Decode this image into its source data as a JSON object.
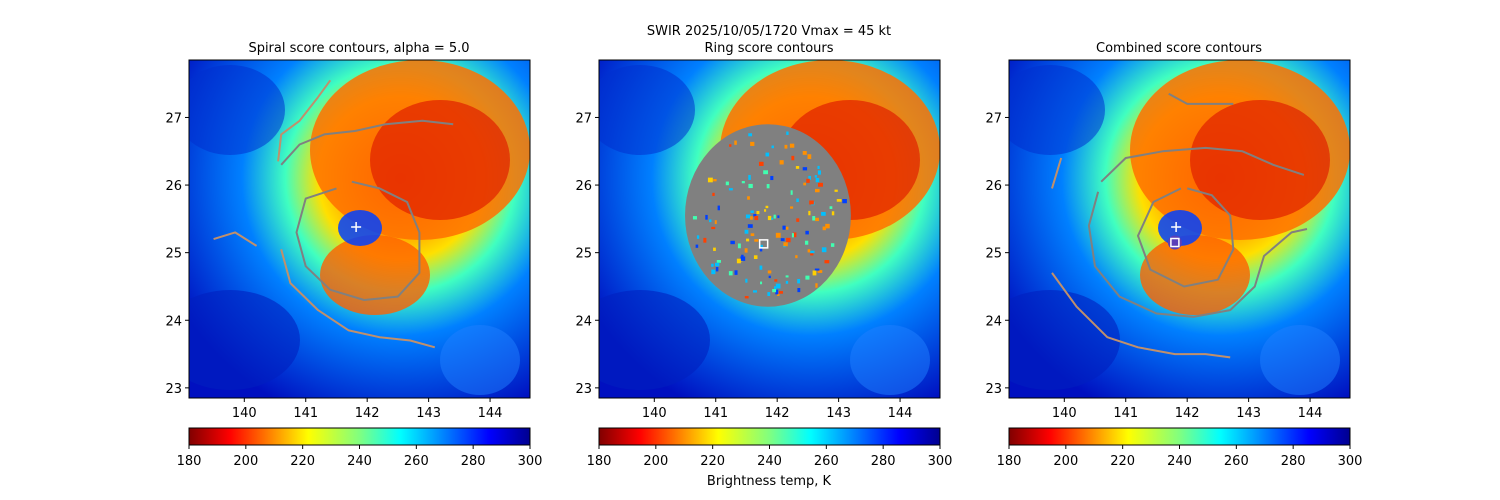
{
  "figure": {
    "suptitle_line1": "SWIR  2025/10/05/1720    Vmax = 45 kt",
    "colorbar_label": "Brightness temp, K"
  },
  "chart_data": [
    {
      "type": "heatmap",
      "title": "Spiral score contours, alpha =  5.0",
      "xlim": [
        139.1,
        144.65
      ],
      "ylim": [
        22.85,
        27.85
      ],
      "x_ticks": [
        140,
        141,
        142,
        143,
        144
      ],
      "y_ticks": [
        23,
        24,
        25,
        26,
        27
      ],
      "grid": false,
      "colormap": "jet",
      "colorbar": {
        "range": [
          180,
          300
        ],
        "ticks": [
          180,
          200,
          220,
          240,
          260,
          280,
          300
        ],
        "reversed": true
      },
      "center_marker": {
        "x": 141.82,
        "y": 25.38,
        "symbol": "+",
        "color": "#ffffff"
      },
      "contours": [
        {
          "color": "#808080",
          "points": [
            [
              140.6,
              26.3
            ],
            [
              140.9,
              26.6
            ],
            [
              141.3,
              26.75
            ],
            [
              141.8,
              26.8
            ],
            [
              142.3,
              26.9
            ],
            [
              142.9,
              26.95
            ],
            [
              143.4,
              26.9
            ]
          ]
        },
        {
          "color": "#808080",
          "points": [
            [
              141.5,
              25.95
            ],
            [
              141.0,
              25.8
            ],
            [
              140.85,
              25.3
            ],
            [
              141.0,
              24.8
            ],
            [
              141.4,
              24.45
            ],
            [
              141.95,
              24.3
            ],
            [
              142.5,
              24.35
            ],
            [
              142.85,
              24.7
            ],
            [
              142.85,
              25.3
            ],
            [
              142.65,
              25.75
            ],
            [
              142.2,
              25.95
            ],
            [
              141.75,
              26.05
            ]
          ]
        },
        {
          "color": "#c0906c",
          "points": [
            [
              140.6,
              25.05
            ],
            [
              140.75,
              24.55
            ],
            [
              141.2,
              24.15
            ],
            [
              141.7,
              23.85
            ],
            [
              142.2,
              23.75
            ],
            [
              142.7,
              23.7
            ],
            [
              143.1,
              23.6
            ]
          ]
        },
        {
          "color": "#c0906c",
          "points": [
            [
              139.5,
              25.2
            ],
            [
              139.85,
              25.3
            ],
            [
              140.2,
              25.1
            ]
          ]
        },
        {
          "color": "#c0906c",
          "points": [
            [
              140.55,
              26.35
            ],
            [
              140.6,
              26.75
            ],
            [
              140.9,
              26.95
            ],
            [
              141.2,
              27.3
            ],
            [
              141.4,
              27.55
            ]
          ]
        }
      ]
    },
    {
      "type": "heatmap",
      "title": "Ring score contours",
      "xlim": [
        139.1,
        144.65
      ],
      "ylim": [
        22.85,
        27.85
      ],
      "x_ticks": [
        140,
        141,
        142,
        143,
        144
      ],
      "y_ticks": [
        23,
        24,
        25,
        26,
        27
      ],
      "grid": false,
      "colormap": "jet",
      "colorbar": {
        "range": [
          180,
          300
        ],
        "ticks": [
          180,
          200,
          220,
          240,
          260,
          280,
          300
        ],
        "reversed": true
      },
      "ring_region": {
        "center_x": 141.85,
        "center_y": 25.55,
        "radius_deg": 1.35,
        "color": "#808080"
      },
      "center_marker": {
        "x": 141.78,
        "y": 25.13,
        "symbol": "square",
        "color": "#ffffff"
      },
      "contours": []
    },
    {
      "type": "heatmap",
      "title": "Combined score contours",
      "xlim": [
        139.1,
        144.65
      ],
      "ylim": [
        22.85,
        27.85
      ],
      "x_ticks": [
        140,
        141,
        142,
        143,
        144
      ],
      "y_ticks": [
        23,
        24,
        25,
        26,
        27
      ],
      "grid": false,
      "colormap": "jet",
      "colorbar": {
        "range": [
          180,
          300
        ],
        "ticks": [
          180,
          200,
          220,
          240,
          260,
          280,
          300
        ],
        "reversed": true
      },
      "center_marker": {
        "x": 141.82,
        "y": 25.38,
        "symbol": "+",
        "color": "#ffffff"
      },
      "square_marker": {
        "x": 141.8,
        "y": 25.15,
        "symbol": "square",
        "color": "#ffffff"
      },
      "contours": [
        {
          "color": "#808080",
          "points": [
            [
              140.6,
              26.05
            ],
            [
              141.0,
              26.4
            ],
            [
              141.6,
              26.5
            ],
            [
              142.3,
              26.55
            ],
            [
              142.9,
              26.5
            ],
            [
              143.4,
              26.3
            ],
            [
              143.9,
              26.15
            ]
          ]
        },
        {
          "color": "#808080",
          "points": [
            [
              140.55,
              25.9
            ],
            [
              140.4,
              25.4
            ],
            [
              140.5,
              24.8
            ],
            [
              140.9,
              24.35
            ],
            [
              141.5,
              24.1
            ],
            [
              142.1,
              24.05
            ],
            [
              142.7,
              24.15
            ],
            [
              143.1,
              24.5
            ],
            [
              143.25,
              24.95
            ],
            [
              143.7,
              25.3
            ],
            [
              143.95,
              25.35
            ]
          ]
        },
        {
          "color": "#808080",
          "points": [
            [
              141.9,
              25.95
            ],
            [
              141.45,
              25.75
            ],
            [
              141.2,
              25.25
            ],
            [
              141.4,
              24.75
            ],
            [
              141.95,
              24.5
            ],
            [
              142.5,
              24.6
            ],
            [
              142.75,
              25.05
            ],
            [
              142.7,
              25.55
            ],
            [
              142.4,
              25.85
            ],
            [
              142.0,
              25.95
            ]
          ]
        },
        {
          "color": "#c0906c",
          "points": [
            [
              139.8,
              25.95
            ],
            [
              139.95,
              26.4
            ]
          ]
        },
        {
          "color": "#c0906c",
          "points": [
            [
              139.8,
              24.7
            ],
            [
              140.2,
              24.2
            ],
            [
              140.7,
              23.75
            ],
            [
              141.2,
              23.6
            ],
            [
              141.8,
              23.5
            ],
            [
              142.3,
              23.5
            ],
            [
              142.7,
              23.45
            ]
          ]
        },
        {
          "color": "#808080",
          "points": [
            [
              141.7,
              27.35
            ],
            [
              142.0,
              27.2
            ],
            [
              142.4,
              27.2
            ],
            [
              142.75,
              27.2
            ]
          ]
        }
      ]
    }
  ]
}
